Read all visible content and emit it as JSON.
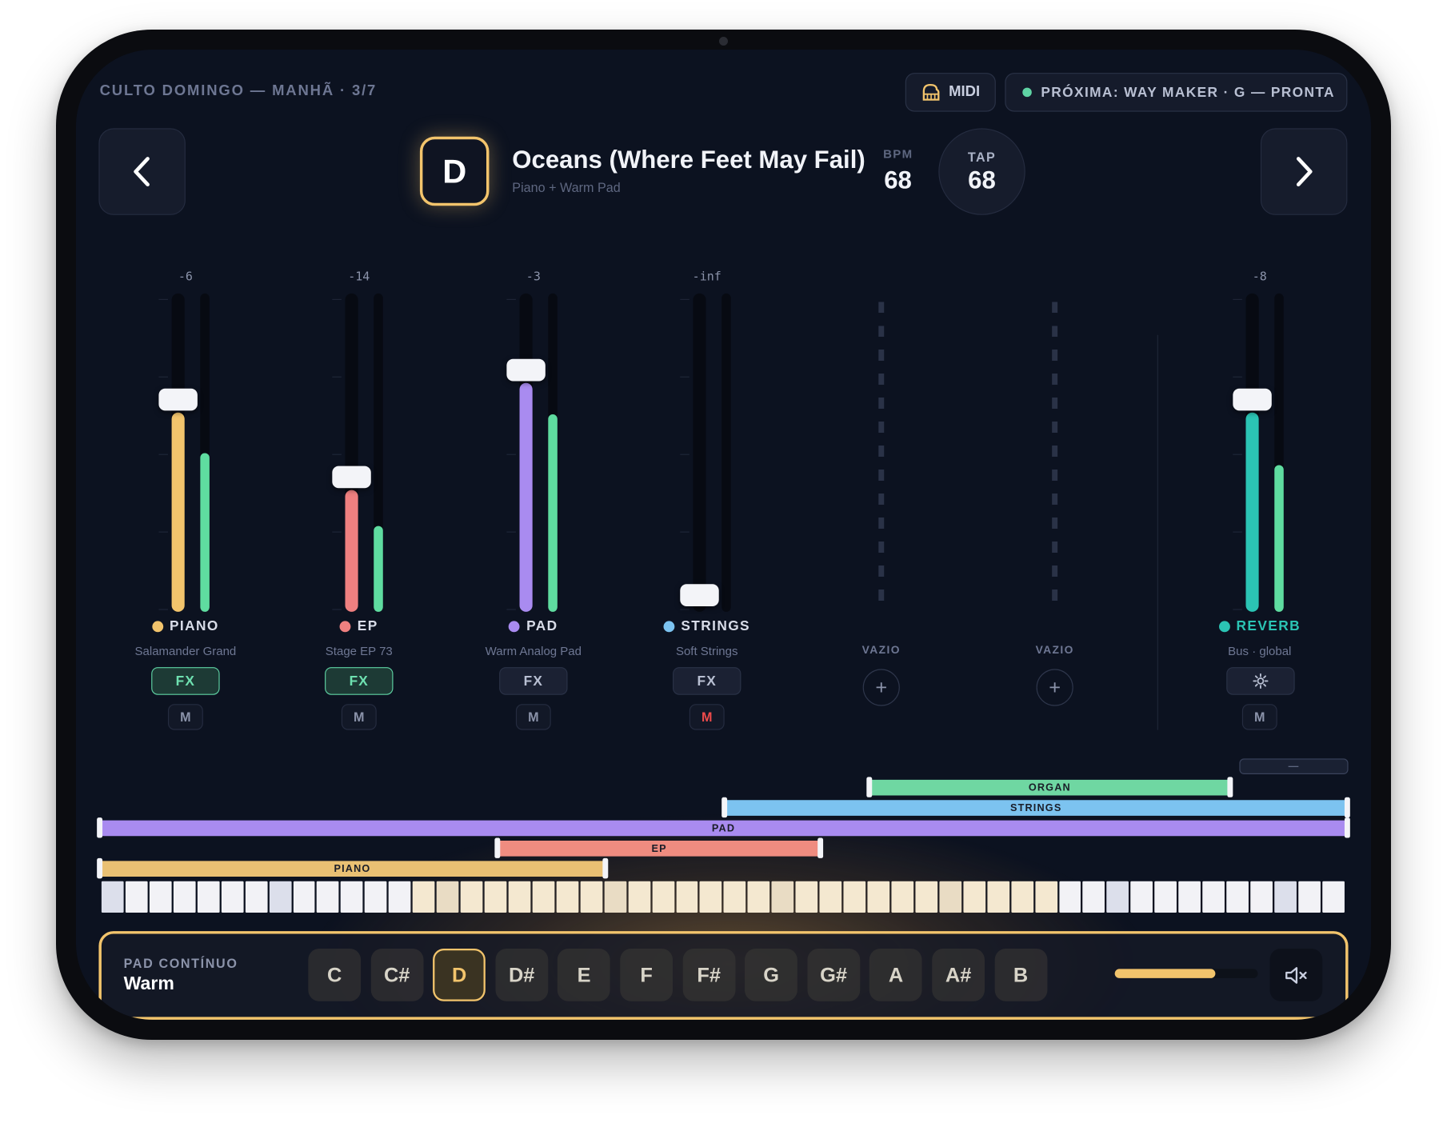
{
  "header": {
    "setlist": "CULTO DOMINGO — MANHÃ · 3/7",
    "midi_label": "MIDI",
    "next_song": "PRÓXIMA: WAY MAKER · G — PRONTA",
    "next_status_color": "#5fd3a4"
  },
  "song": {
    "key": "D",
    "title": "Oceans (Where Feet May Fail)",
    "subtitle": "Piano + Warm Pad",
    "bpm_label": "BPM",
    "bpm": "68",
    "tap_label": "TAP",
    "tap_value": "68"
  },
  "channels": [
    {
      "name": "PIANO",
      "patch": "Salamander Grand",
      "db": "-6",
      "color": "#f2c46c",
      "fader_level": 0.66,
      "meter_level": 0.5,
      "fx_label": "FX",
      "fx_active": true,
      "mute_label": "M",
      "muted": false
    },
    {
      "name": "EP",
      "patch": "Stage EP 73",
      "db": "-14",
      "color": "#ef8080",
      "fader_level": 0.4,
      "meter_level": 0.27,
      "fx_label": "FX",
      "fx_active": true,
      "mute_label": "M",
      "muted": false
    },
    {
      "name": "PAD",
      "patch": "Warm Analog Pad",
      "db": "-3",
      "color": "#a98bf0",
      "fader_level": 0.76,
      "meter_level": 0.62,
      "fx_label": "FX",
      "fx_active": false,
      "mute_label": "M",
      "muted": false
    },
    {
      "name": "STRINGS",
      "patch": "Soft Strings",
      "db": "-inf",
      "color": "#7cc3f0",
      "fader_level": 0.0,
      "meter_level": 0.0,
      "fx_label": "FX",
      "fx_active": false,
      "mute_label": "M",
      "muted": true
    }
  ],
  "empty_slots": [
    {
      "label": "VAZIO",
      "add_icon": "plus-icon"
    },
    {
      "label": "VAZIO",
      "add_icon": "plus-icon"
    }
  ],
  "reverb": {
    "name": "REVERB",
    "patch": "Bus · global",
    "db": "-8",
    "color": "#2bc4b4",
    "fader_level": 0.66,
    "meter_level": 0.46,
    "settings_icon": "gear-icon",
    "mute_label": "M"
  },
  "zones": [
    {
      "label": "PIANO",
      "color": "#e9c073",
      "start": 0.0,
      "end": 0.405
    },
    {
      "label": "EP",
      "color": "#ef8c80",
      "start": 0.319,
      "end": 0.578
    },
    {
      "label": "PAD",
      "color": "#a98bf0",
      "start": 0.0,
      "end": 1.0
    },
    {
      "label": "STRINGS",
      "color": "#7cc3f0",
      "start": 0.501,
      "end": 1.0
    },
    {
      "label": "ORGAN",
      "color": "#6fd7a2",
      "start": 0.617,
      "end": 0.906
    },
    {
      "label": "—",
      "color": "#1a2133",
      "start": 0.827,
      "end": 1.0
    }
  ],
  "keyboard": {
    "white_keys": 52
  },
  "pad": {
    "label": "PAD CONTÍNUO",
    "value": "Warm",
    "notes": [
      "C",
      "C#",
      "D",
      "D#",
      "E",
      "F",
      "F#",
      "G",
      "G#",
      "A",
      "A#",
      "B"
    ],
    "selected": "D",
    "volume": 0.7,
    "mute_icon": "speaker-mute-icon"
  }
}
